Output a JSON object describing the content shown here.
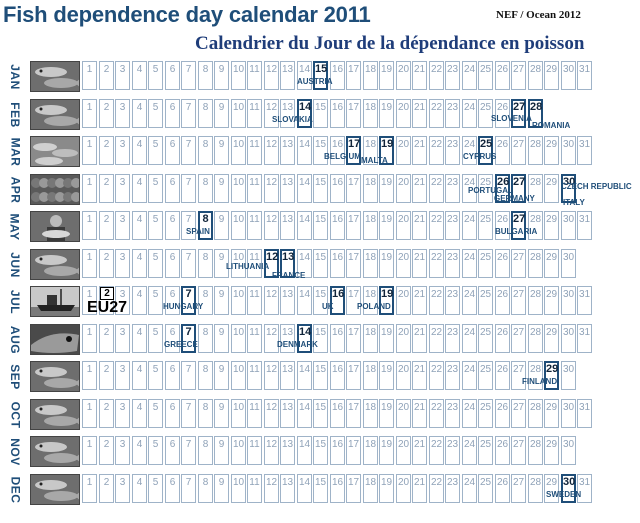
{
  "title": "Fish dependence day calendar 2011",
  "credit": "NEF / Ocean 2012",
  "subtitle": "Calendrier du Jour de la dépendance en poisson",
  "eu": {
    "label": "EU27",
    "day": 2,
    "month": "JUL"
  },
  "months": [
    {
      "name": "JAN",
      "days": 31,
      "photo": "fish-photo-icon",
      "highlights": [
        {
          "day": 15,
          "country": "AUSTRIA"
        }
      ]
    },
    {
      "name": "FEB",
      "days": 28,
      "photo": "fish-photo-icon",
      "highlights": [
        {
          "day": 14,
          "country": "SLOVAKIA"
        },
        {
          "day": 27,
          "country": "SLOVENIA"
        },
        {
          "day": 28,
          "country": "ROMANIA"
        }
      ]
    },
    {
      "name": "MAR",
      "days": 31,
      "photo": "fish-market-photo-icon",
      "highlights": [
        {
          "day": 17,
          "country": "BELGIUM"
        },
        {
          "day": 19,
          "country": "MALTA"
        },
        {
          "day": 25,
          "country": "CYPRUS"
        }
      ]
    },
    {
      "name": "APR",
      "days": 30,
      "photo": "shellfish-photo-icon",
      "highlights": [
        {
          "day": 26,
          "country": "PORTUGAL"
        },
        {
          "day": 27,
          "country": "GERMANY"
        },
        {
          "day": 30,
          "country": "CZECH REPUBLIC"
        },
        {
          "day": 30,
          "country": "ITALY"
        }
      ]
    },
    {
      "name": "MAY",
      "days": 31,
      "photo": "fisherman-photo-icon",
      "highlights": [
        {
          "day": 8,
          "country": "SPAIN"
        },
        {
          "day": 27,
          "country": "BULGARIA"
        }
      ]
    },
    {
      "name": "JUN",
      "days": 30,
      "photo": "fish-photo-icon",
      "highlights": [
        {
          "day": 12,
          "country": "LITHUANIA"
        },
        {
          "day": 13,
          "country": "FRANCE"
        }
      ]
    },
    {
      "name": "JUL",
      "days": 31,
      "photo": "fishing-boat-photo-icon",
      "highlights": [
        {
          "day": 7,
          "country": "HUNGARY"
        },
        {
          "day": 16,
          "country": "UK"
        },
        {
          "day": 19,
          "country": "POLAND"
        }
      ]
    },
    {
      "name": "AUG",
      "days": 31,
      "photo": "fish-head-photo-icon",
      "highlights": [
        {
          "day": 7,
          "country": "GREECE"
        },
        {
          "day": 14,
          "country": "DENMARK"
        }
      ]
    },
    {
      "name": "SEP",
      "days": 30,
      "photo": "fish-photo-icon",
      "highlights": [
        {
          "day": 29,
          "country": "FINLAND"
        }
      ]
    },
    {
      "name": "OCT",
      "days": 31,
      "photo": "fish-photo-icon",
      "highlights": []
    },
    {
      "name": "NOV",
      "days": 30,
      "photo": "fish-photo-icon",
      "highlights": []
    },
    {
      "name": "DEC",
      "days": 31,
      "photo": "fish-photo-icon",
      "highlights": [
        {
          "day": 30,
          "country": "SWEDEN"
        }
      ]
    }
  ]
}
